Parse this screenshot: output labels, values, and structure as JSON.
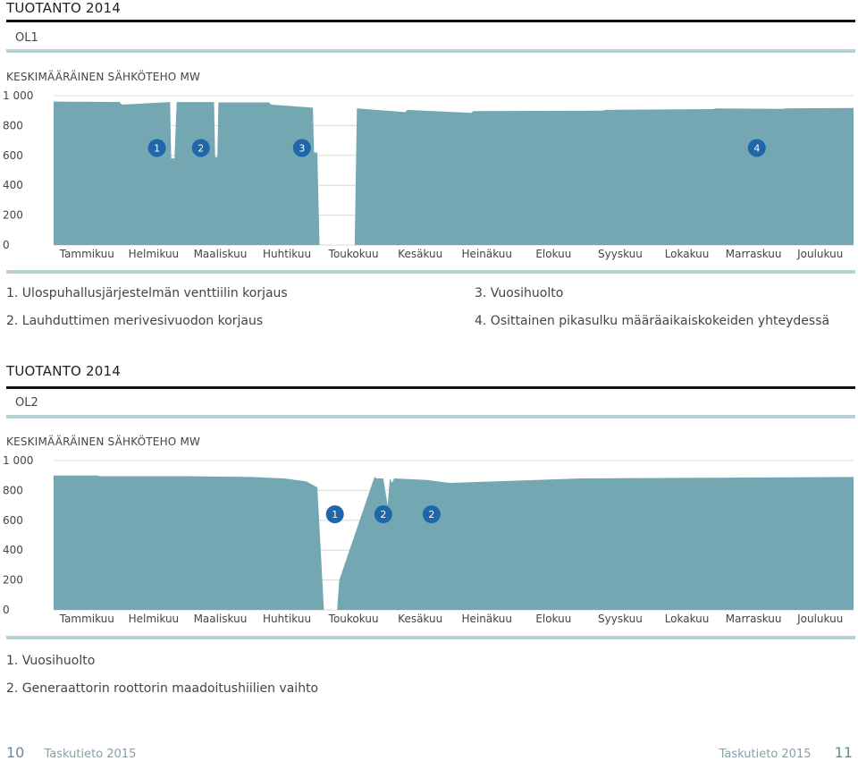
{
  "colors": {
    "bar": "#73a7b2",
    "marker": "#1f67a8",
    "grid": "#d9d9d9",
    "axis_text": "#444444"
  },
  "sections": [
    {
      "title": "TUOTANTO 2014",
      "plant": "OL1",
      "ylabel": "KESKIMÄÄRÄINEN SÄHKÖTEHO MW",
      "notes": [
        "1. Ulospuhallusjärjestelmän venttiilin korjaus",
        "2. Lauhduttimen merivesivuodon korjaus",
        "3. Vuosihuolto",
        "4. Osittainen pikasulku määräaikaiskokeiden yhteydessä"
      ]
    },
    {
      "title": "TUOTANTO 2014",
      "plant": "OL2",
      "ylabel": "KESKIMÄÄRÄINEN SÄHKÖTEHO MW",
      "notes": [
        "1. Vuosihuolto",
        "2. Generaattorin roottorin maadoitushiilien vaihto"
      ]
    }
  ],
  "chart_data": [
    {
      "type": "area",
      "ylim": [
        0,
        1000
      ],
      "yticks": [
        "1 000",
        "800",
        "600",
        "400",
        "200",
        "0"
      ],
      "ytick_values": [
        1000,
        800,
        600,
        400,
        200,
        0
      ],
      "categories": [
        "Tammikuu",
        "Helmikuu",
        "Maaliskuu",
        "Huhtikuu",
        "Toukokuu",
        "Kesäkuu",
        "Heinäkuu",
        "Elokuu",
        "Syyskuu",
        "Lokakuu",
        "Marraskuu",
        "Joulukuu"
      ],
      "series": [
        {
          "x": [
            0,
            30,
            31,
            53,
            53.5,
            55,
            56,
            73,
            73.5,
            74.5,
            75,
            98,
            99,
            118,
            118.5,
            120,
            121,
            137,
            138,
            160,
            161,
            190,
            191,
            250,
            251,
            300,
            301,
            332,
            333,
            364
          ],
          "values": [
            960,
            958,
            940,
            957,
            580,
            580,
            957,
            957,
            590,
            590,
            955,
            955,
            940,
            920,
            620,
            620,
            0,
            0,
            915,
            890,
            905,
            885,
            897,
            900,
            905,
            910,
            915,
            912,
            915,
            918
          ]
        }
      ],
      "markers": [
        {
          "label": "1",
          "x": 47,
          "y": 650
        },
        {
          "label": "2",
          "x": 67,
          "y": 650
        },
        {
          "label": "3",
          "x": 113,
          "y": 650
        },
        {
          "label": "4",
          "x": 320,
          "y": 650
        }
      ]
    },
    {
      "type": "area",
      "ylim": [
        0,
        1000
      ],
      "yticks": [
        "1 000",
        "800",
        "600",
        "400",
        "200",
        "0"
      ],
      "ytick_values": [
        1000,
        800,
        600,
        400,
        200,
        0
      ],
      "categories": [
        "Tammikuu",
        "Helmikuu",
        "Maaliskuu",
        "Huhtikuu",
        "Toukokuu",
        "Kesäkuu",
        "Heinäkuu",
        "Elokuu",
        "Syyskuu",
        "Lokakuu",
        "Marraskuu",
        "Joulukuu"
      ],
      "series": [
        {
          "x": [
            0,
            20,
            21,
            60,
            90,
            105,
            115,
            120,
            123,
            129,
            130,
            146,
            147,
            150,
            152,
            153,
            154,
            155,
            170,
            175,
            180,
            200,
            240,
            300,
            364
          ],
          "values": [
            900,
            900,
            895,
            895,
            890,
            880,
            860,
            820,
            0,
            0,
            200,
            890,
            880,
            880,
            700,
            880,
            850,
            880,
            870,
            860,
            850,
            860,
            880,
            885,
            890
          ]
        }
      ],
      "markers": [
        {
          "label": "1",
          "x": 128,
          "y": 640
        },
        {
          "label": "2",
          "x": 150,
          "y": 640
        },
        {
          "label": "2",
          "x": 172,
          "y": 640
        }
      ]
    }
  ],
  "footer": {
    "left_page": "10",
    "left_text": "Taskutieto 2015",
    "right_text": "Taskutieto 2015",
    "right_page": "11"
  }
}
